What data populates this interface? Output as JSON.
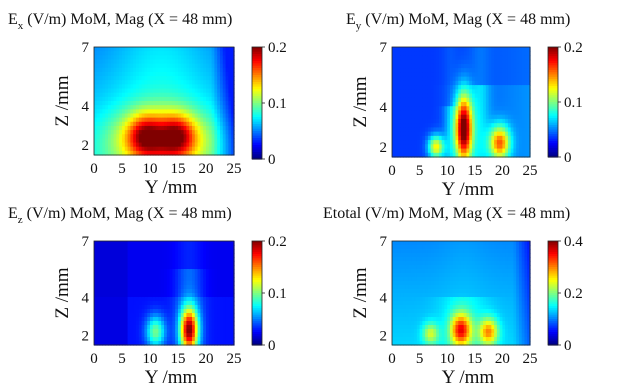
{
  "chart_data": [
    {
      "type": "heatmap",
      "title_main": "E",
      "title_sub": "x",
      "title_rest": " (V/m) MoM, Mag (X = 48 mm)",
      "xlabel": "Y /mm",
      "ylabel": "Z /mm",
      "xlim": [
        0,
        25
      ],
      "ylim": [
        1.5,
        7
      ],
      "xticks": [
        "0",
        "5",
        "10",
        "15",
        "20",
        "25"
      ],
      "yticks": [
        "2",
        "4",
        "7"
      ],
      "colorbar": {
        "min": 0,
        "max": 0.2,
        "ticks": [
          "0",
          "0.1",
          "0.2"
        ]
      },
      "field": "ex"
    },
    {
      "type": "heatmap",
      "title_main": "E",
      "title_sub": "y",
      "title_rest": " (V/m) MoM, Mag (X = 48 mm)",
      "xlabel": "Y /mm",
      "ylabel": "Z /mm",
      "xlim": [
        0,
        25
      ],
      "ylim": [
        1.5,
        7
      ],
      "xticks": [
        "0",
        "5",
        "10",
        "15",
        "20",
        "25"
      ],
      "yticks": [
        "2",
        "4",
        "7"
      ],
      "colorbar": {
        "min": 0,
        "max": 0.2,
        "ticks": [
          "0",
          "0.1",
          "0.2"
        ]
      },
      "field": "ey"
    },
    {
      "type": "heatmap",
      "title_main": "E",
      "title_sub": "z",
      "title_rest": " (V/m) MoM, Mag (X = 48 mm)",
      "xlabel": "Y /mm",
      "ylabel": "Z /mm",
      "xlim": [
        0,
        25
      ],
      "ylim": [
        1.5,
        7
      ],
      "xticks": [
        "0",
        "5",
        "10",
        "15",
        "20",
        "25"
      ],
      "yticks": [
        "2",
        "4",
        "7"
      ],
      "colorbar": {
        "min": 0,
        "max": 0.2,
        "ticks": [
          "0",
          "0.1",
          "0.2"
        ]
      },
      "field": "ez"
    },
    {
      "type": "heatmap",
      "title_main": "Etotal",
      "title_sub": "",
      "title_rest": " (V/m) MoM, Mag (X = 48 mm)",
      "xlabel": "Y /mm",
      "ylabel": "Z /mm",
      "xlim": [
        0,
        25
      ],
      "ylim": [
        1.5,
        7
      ],
      "xticks": [
        "0",
        "5",
        "10",
        "15",
        "20",
        "25"
      ],
      "yticks": [
        "2",
        "4",
        "7"
      ],
      "colorbar": {
        "min": 0,
        "max": 0.4,
        "ticks": [
          "0",
          "0.2",
          "0.4"
        ]
      },
      "field": "et"
    }
  ]
}
